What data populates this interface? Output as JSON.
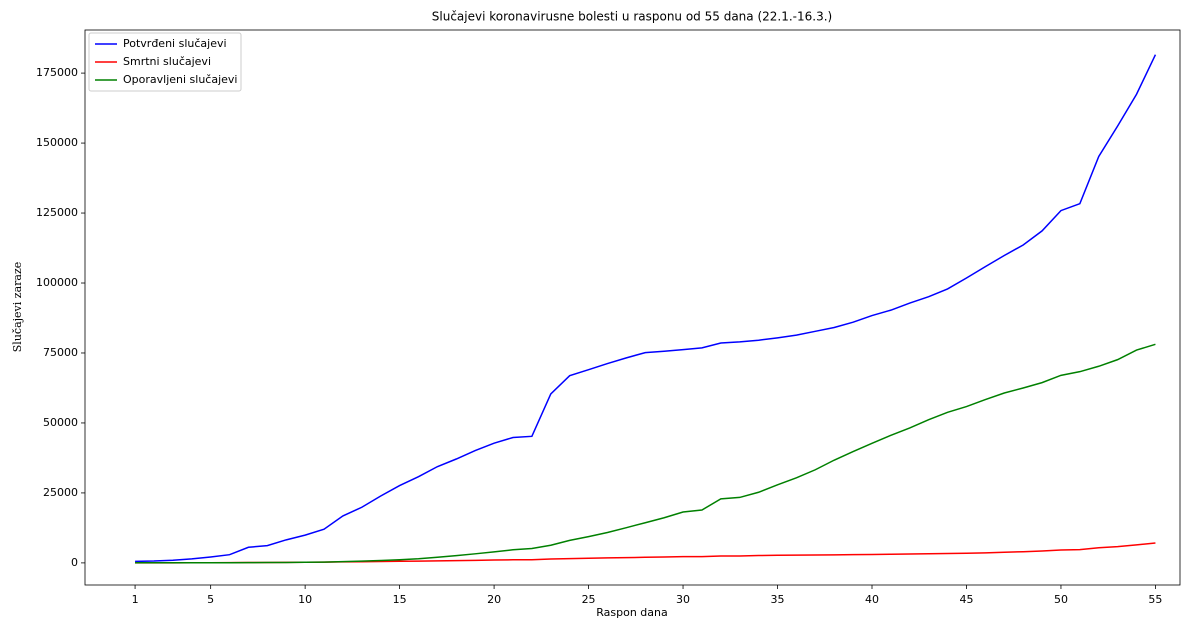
{
  "chart_data": {
    "type": "line",
    "title": "Slučajevi koronavirusne bolesti u rasponu od 55 dana (22.1.-16.3.)",
    "xlabel": "Raspon dana",
    "ylabel": "Slučajevi zaraze",
    "x": [
      1,
      2,
      3,
      4,
      5,
      6,
      7,
      8,
      9,
      10,
      11,
      12,
      13,
      14,
      15,
      16,
      17,
      18,
      19,
      20,
      21,
      22,
      23,
      24,
      25,
      26,
      27,
      28,
      29,
      30,
      31,
      32,
      33,
      34,
      35,
      36,
      37,
      38,
      39,
      40,
      41,
      42,
      43,
      44,
      45,
      46,
      47,
      48,
      49,
      50,
      51,
      52,
      53,
      54,
      55
    ],
    "series": [
      {
        "name": "Potvrđeni slučajevi",
        "color": "#0000ff",
        "values": [
          555,
          654,
          941,
          1434,
          2118,
          2927,
          5578,
          6166,
          8234,
          9927,
          12038,
          16787,
          19881,
          23892,
          27635,
          30794,
          34391,
          37120,
          40150,
          42762,
          44802,
          45221,
          60368,
          66885,
          69030,
          71224,
          73258,
          75136,
          75639,
          76197,
          76819,
          78572,
          78958,
          79561,
          80406,
          81388,
          82746,
          84112,
          86011,
          88369,
          90306,
          92840,
          95120,
          97886,
          101801,
          105847,
          109821,
          113590,
          118620,
          125875,
          128352,
          145205,
          156101,
          167454,
          181574
        ]
      },
      {
        "name": "Smrtni slučajevi",
        "color": "#ff0000",
        "values": [
          17,
          18,
          26,
          42,
          56,
          82,
          131,
          133,
          171,
          213,
          259,
          362,
          426,
          492,
          564,
          634,
          719,
          806,
          906,
          1013,
          1113,
          1118,
          1371,
          1523,
          1666,
          1770,
          1868,
          2007,
          2122,
          2247,
          2251,
          2458,
          2469,
          2629,
          2708,
          2770,
          2814,
          2872,
          2941,
          2996,
          3085,
          3160,
          3254,
          3348,
          3460,
          3558,
          3802,
          3988,
          4262,
          4615,
          4720,
          5404,
          5819,
          6440,
          7126
        ]
      },
      {
        "name": "Oporavljeni slučajevi",
        "color": "#008000",
        "values": [
          28,
          30,
          36,
          39,
          52,
          61,
          107,
          126,
          143,
          222,
          284,
          472,
          623,
          852,
          1124,
          1487,
          2011,
          2616,
          3244,
          3946,
          4683,
          5150,
          6295,
          8058,
          9395,
          10865,
          12583,
          14352,
          16121,
          18177,
          18890,
          22886,
          23394,
          25227,
          27905,
          30384,
          33277,
          36711,
          39782,
          42716,
          45602,
          48228,
          51170,
          53796,
          55865,
          58358,
          60694,
          62494,
          64404,
          67003,
          68324,
          70251,
          72624,
          76034,
          78088
        ]
      }
    ],
    "xlim": [
      -1.65,
      56.3
    ],
    "xticks": [
      1,
      5,
      10,
      15,
      20,
      25,
      30,
      35,
      40,
      45,
      50,
      55
    ],
    "ylim": [
      -7900,
      190400
    ],
    "yticks": [
      0,
      25000,
      50000,
      75000,
      100000,
      125000,
      150000,
      175000
    ],
    "legend": "upper-left"
  }
}
